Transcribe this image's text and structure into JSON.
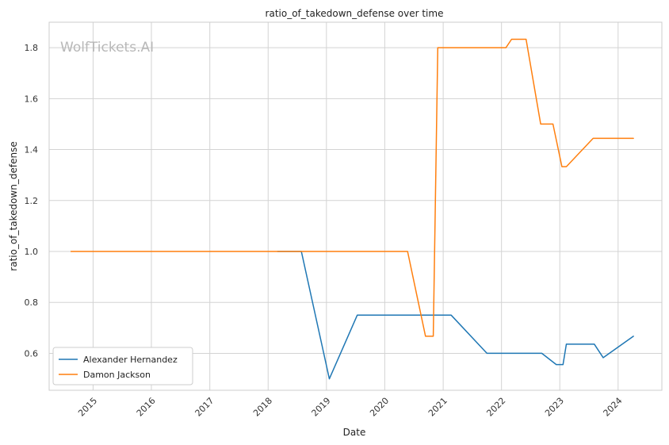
{
  "chart_data": {
    "type": "line",
    "title": "ratio_of_takedown_defense over time",
    "xlabel": "Date",
    "ylabel": "ratio_of_takedown_defense",
    "watermark": "WolfTickets.AI",
    "xlim": [
      "2014-04-01",
      "2024-10-01"
    ],
    "ylim": [
      0.455,
      1.9
    ],
    "x_ticks": [
      "2015",
      "2016",
      "2017",
      "2018",
      "2019",
      "2020",
      "2021",
      "2022",
      "2023",
      "2024"
    ],
    "y_ticks": [
      "0.6",
      "0.8",
      "1.0",
      "1.2",
      "1.4",
      "1.6",
      "1.8"
    ],
    "grid": true,
    "legend_position": "lower-left",
    "series": [
      {
        "name": "Alexander Hernandez",
        "color": "#1f77b4",
        "points": [
          {
            "x": "2018-03-01",
            "y": 1.0
          },
          {
            "x": "2018-07-28",
            "y": 1.0
          },
          {
            "x": "2019-01-19",
            "y": 0.5
          },
          {
            "x": "2019-07-13",
            "y": 0.75
          },
          {
            "x": "2021-02-20",
            "y": 0.75
          },
          {
            "x": "2021-10-02",
            "y": 0.6
          },
          {
            "x": "2022-09-10",
            "y": 0.6
          },
          {
            "x": "2022-12-10",
            "y": 0.556
          },
          {
            "x": "2023-01-21",
            "y": 0.556
          },
          {
            "x": "2023-02-11",
            "y": 0.636
          },
          {
            "x": "2023-08-05",
            "y": 0.636
          },
          {
            "x": "2023-09-30",
            "y": 0.583
          },
          {
            "x": "2024-04-06",
            "y": 0.667
          }
        ]
      },
      {
        "name": "Damon Jackson",
        "color": "#ff7f0e",
        "points": [
          {
            "x": "2014-08-16",
            "y": 1.0
          },
          {
            "x": "2020-05-23",
            "y": 1.0
          },
          {
            "x": "2020-09-12",
            "y": 0.667
          },
          {
            "x": "2020-10-31",
            "y": 0.667
          },
          {
            "x": "2020-11-28",
            "y": 1.8
          },
          {
            "x": "2022-01-29",
            "y": 1.8
          },
          {
            "x": "2022-03-05",
            "y": 1.833
          },
          {
            "x": "2022-06-04",
            "y": 1.833
          },
          {
            "x": "2022-09-03",
            "y": 1.5
          },
          {
            "x": "2022-11-19",
            "y": 1.5
          },
          {
            "x": "2023-01-14",
            "y": 1.333
          },
          {
            "x": "2023-02-11",
            "y": 1.333
          },
          {
            "x": "2023-07-29",
            "y": 1.444
          },
          {
            "x": "2024-04-06",
            "y": 1.444
          }
        ]
      }
    ]
  }
}
